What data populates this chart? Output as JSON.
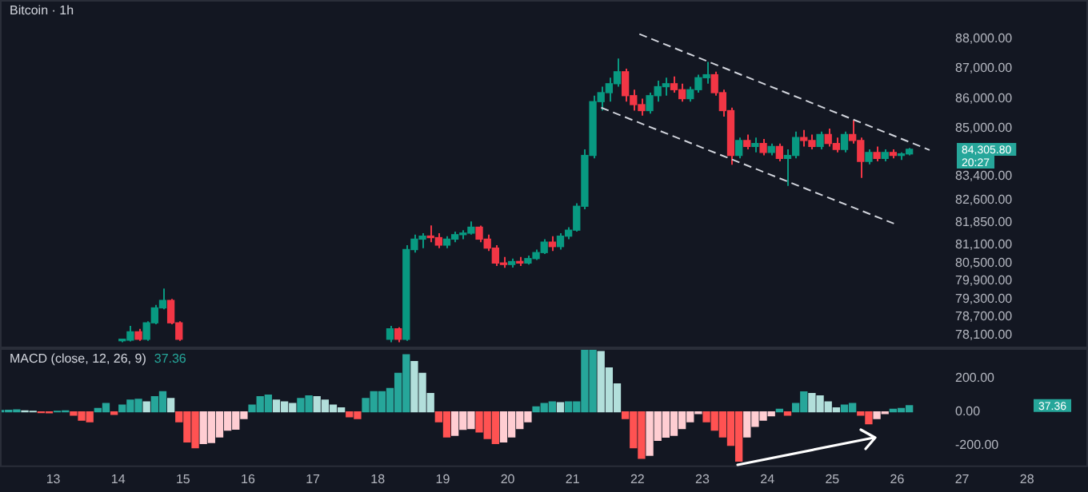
{
  "chart_data": [
    {
      "type": "candlestick",
      "title": "Bitcoin · 1h",
      "tick_labels": "y",
      "grid": false,
      "legend": false,
      "xlim": [
        12.18,
        28.94
      ],
      "ylim": [
        77650,
        89300
      ],
      "yticks": [
        {
          "value": 88000,
          "label": "88,000.00"
        },
        {
          "value": 87000,
          "label": "87,000.00"
        },
        {
          "value": 86000,
          "label": "86,000.00"
        },
        {
          "value": 85000,
          "label": "85,000.00"
        },
        {
          "value": 83400,
          "label": "83,400.00"
        },
        {
          "value": 82600,
          "label": "82,600.00"
        },
        {
          "value": 81850,
          "label": "81,850.00"
        },
        {
          "value": 81100,
          "label": "81,100.00"
        },
        {
          "value": 80500,
          "label": "80,500.00"
        },
        {
          "value": 79900,
          "label": "79,900.00"
        },
        {
          "value": 79300,
          "label": "79,300.00"
        },
        {
          "value": 78700,
          "label": "78,700.00"
        },
        {
          "value": 78100,
          "label": "78,100.00"
        }
      ],
      "x": [
        14.0625,
        14.1875,
        14.3125,
        14.4375,
        14.5625,
        14.6875,
        14.8125,
        14.9375,
        18.1875,
        18.3125,
        18.4375,
        18.5625,
        18.6875,
        18.8125,
        18.9375,
        19.0625,
        19.1875,
        19.3125,
        19.4375,
        19.5625,
        19.6875,
        19.8125,
        19.9375,
        20.0625,
        20.1875,
        20.3125,
        20.4375,
        20.5625,
        20.6875,
        20.8125,
        20.9375,
        21.0625,
        21.1875,
        21.3125,
        21.4375,
        21.5625,
        21.6875,
        21.8125,
        21.9375,
        22.0625,
        22.1875,
        22.3125,
        22.4375,
        22.5625,
        22.6875,
        22.8125,
        22.9375,
        23.0625,
        23.1875,
        23.3125,
        23.4375,
        23.5625,
        23.6875,
        23.8125,
        23.9375,
        24.0625,
        24.1875,
        24.3125,
        24.4375,
        24.5625,
        24.6875,
        24.8125,
        24.9375,
        25.0625,
        25.1875,
        25.3125,
        25.4375,
        25.5625,
        25.6875,
        25.8125,
        25.9375,
        26.0625,
        26.1875
      ],
      "ohlc": [
        [
          77900,
          77950,
          77850,
          77920
        ],
        [
          77920,
          78400,
          77880,
          78200
        ],
        [
          78200,
          78300,
          77900,
          77950
        ],
        [
          77950,
          78550,
          77900,
          78500
        ],
        [
          78500,
          79100,
          78450,
          79000
        ],
        [
          79000,
          79650,
          78950,
          79250
        ],
        [
          79250,
          79300,
          78450,
          78500
        ],
        [
          78500,
          78550,
          77900,
          77950
        ],
        [
          77950,
          78400,
          77850,
          78300
        ],
        [
          78300,
          78350,
          77850,
          77950
        ],
        [
          77950,
          81100,
          77900,
          80950
        ],
        [
          80950,
          81450,
          80850,
          81300
        ],
        [
          81300,
          81500,
          81000,
          81400
        ],
        [
          81400,
          81760,
          81200,
          81350
        ],
        [
          81350,
          81500,
          81000,
          81100
        ],
        [
          81100,
          81400,
          81000,
          81300
        ],
        [
          81300,
          81550,
          81200,
          81450
        ],
        [
          81450,
          81600,
          81300,
          81500
        ],
        [
          81500,
          81890,
          81450,
          81700
        ],
        [
          81700,
          81750,
          81200,
          81300
        ],
        [
          81300,
          81450,
          80900,
          81000
        ],
        [
          81000,
          81100,
          80400,
          80500
        ],
        [
          80500,
          80700,
          80340,
          80450
        ],
        [
          80450,
          80650,
          80350,
          80550
        ],
        [
          80550,
          80700,
          80400,
          80500
        ],
        [
          80500,
          80750,
          80450,
          80650
        ],
        [
          80650,
          80950,
          80600,
          80850
        ],
        [
          80850,
          81300,
          80800,
          81200
        ],
        [
          81200,
          81400,
          80900,
          81050
        ],
        [
          81050,
          81500,
          80950,
          81400
        ],
        [
          81400,
          81700,
          81300,
          81600
        ],
        [
          81600,
          82500,
          81550,
          82400
        ],
        [
          82400,
          84300,
          82300,
          84100
        ],
        [
          84100,
          86100,
          84000,
          85900
        ],
        [
          85900,
          86400,
          85600,
          86200
        ],
        [
          86200,
          86700,
          85900,
          86500
        ],
        [
          86500,
          87340,
          86400,
          86900
        ],
        [
          86900,
          87000,
          85900,
          86100
        ],
        [
          86100,
          86300,
          85600,
          85800
        ],
        [
          85800,
          86000,
          85430,
          85600
        ],
        [
          85600,
          86200,
          85500,
          86100
        ],
        [
          86100,
          86600,
          85900,
          86400
        ],
        [
          86400,
          86700,
          86100,
          86500
        ],
        [
          86500,
          86740,
          86200,
          86300
        ],
        [
          86300,
          86500,
          85900,
          86000
        ],
        [
          86000,
          86400,
          85900,
          86300
        ],
        [
          86300,
          86800,
          86200,
          86700
        ],
        [
          86700,
          87230,
          86500,
          86800
        ],
        [
          86800,
          86900,
          86100,
          86200
        ],
        [
          86200,
          86300,
          85400,
          85600
        ],
        [
          85600,
          85700,
          83790,
          84100
        ],
        [
          84100,
          84700,
          84000,
          84600
        ],
        [
          84600,
          84800,
          84300,
          84400
        ],
        [
          84400,
          84700,
          84200,
          84500
        ],
        [
          84500,
          84650,
          84100,
          84200
        ],
        [
          84200,
          84500,
          84100,
          84400
        ],
        [
          84400,
          84500,
          83900,
          84000
        ],
        [
          84000,
          84300,
          83080,
          84100
        ],
        [
          84100,
          84900,
          84000,
          84700
        ],
        [
          84700,
          84950,
          84400,
          84600
        ],
        [
          84600,
          84800,
          84300,
          84400
        ],
        [
          84400,
          84900,
          84300,
          84800
        ],
        [
          84800,
          85000,
          84400,
          84500
        ],
        [
          84500,
          84700,
          84200,
          84300
        ],
        [
          84300,
          84900,
          84200,
          84800
        ],
        [
          84800,
          85270,
          84500,
          84600
        ],
        [
          84600,
          84700,
          83350,
          83900
        ],
        [
          83900,
          84300,
          83800,
          84200
        ],
        [
          84200,
          84400,
          83900,
          84000
        ],
        [
          84000,
          84300,
          83900,
          84200
        ],
        [
          84200,
          84300,
          84000,
          84100
        ],
        [
          84100,
          84200,
          83950,
          84150
        ],
        [
          84150,
          84350,
          84100,
          84305.8
        ]
      ],
      "series": [
        {
          "type": "line",
          "x": [
            22.03,
            26.5
          ],
          "values": [
            88160,
            84280
          ],
          "color": "#d1d4dc"
        },
        {
          "type": "line",
          "x": [
            21.44,
            25.95
          ],
          "values": [
            85700,
            81820
          ],
          "color": "#d1d4dc"
        }
      ],
      "line_style": "dashed",
      "annotations": [
        "84,305.80",
        "20:27"
      ]
    },
    {
      "type": "bar",
      "title": "MACD (close, 12, 26, 9)",
      "grid": false,
      "legend": false,
      "xlim": [
        12.18,
        28.94
      ],
      "ylim": [
        -330,
        380
      ],
      "xticks": [
        13,
        14,
        15,
        16,
        17,
        18,
        19,
        20,
        21,
        22,
        23,
        24,
        25,
        26,
        27,
        28
      ],
      "yticks": [
        {
          "value": 200,
          "label": "200.00"
        },
        {
          "value": 0,
          "label": "0.00"
        },
        {
          "value": -200,
          "label": "-200.00"
        }
      ],
      "x": [
        12.1875,
        12.3125,
        12.4375,
        12.5625,
        12.6875,
        12.8125,
        12.9375,
        13.0625,
        13.1875,
        13.3125,
        13.4375,
        13.5625,
        13.6875,
        13.8125,
        13.9375,
        14.0625,
        14.1875,
        14.3125,
        14.4375,
        14.5625,
        14.6875,
        14.8125,
        14.9375,
        15.0625,
        15.1875,
        15.3125,
        15.4375,
        15.5625,
        15.6875,
        15.8125,
        15.9375,
        16.0625,
        16.1875,
        16.3125,
        16.4375,
        16.5625,
        16.6875,
        16.8125,
        16.9375,
        17.0625,
        17.1875,
        17.3125,
        17.4375,
        17.5625,
        17.6875,
        17.8125,
        17.9375,
        18.0625,
        18.1875,
        18.3125,
        18.4375,
        18.5625,
        18.6875,
        18.8125,
        18.9375,
        19.0625,
        19.1875,
        19.3125,
        19.4375,
        19.5625,
        19.6875,
        19.8125,
        19.9375,
        20.0625,
        20.1875,
        20.3125,
        20.4375,
        20.5625,
        20.6875,
        20.8125,
        20.9375,
        21.0625,
        21.1875,
        21.3125,
        21.4375,
        21.5625,
        21.6875,
        21.8125,
        21.9375,
        22.0625,
        22.1875,
        22.3125,
        22.4375,
        22.5625,
        22.6875,
        22.8125,
        22.9375,
        23.0625,
        23.1875,
        23.3125,
        23.4375,
        23.5625,
        23.6875,
        23.8125,
        23.9375,
        24.0625,
        24.1875,
        24.3125,
        24.4375,
        24.5625,
        24.6875,
        24.8125,
        24.9375,
        25.0625,
        25.1875,
        25.3125,
        25.4375,
        25.5625,
        25.6875,
        25.8125,
        25.9375,
        26.0625,
        26.1875
      ],
      "values": [
        8,
        10,
        12,
        6,
        4,
        -4,
        -6,
        4,
        6,
        -20,
        -50,
        -60,
        20,
        50,
        -15,
        40,
        70,
        75,
        60,
        90,
        120,
        80,
        -60,
        -180,
        -214,
        -190,
        -183,
        -150,
        -110,
        -103,
        -40,
        40,
        90,
        100,
        70,
        60,
        50,
        80,
        95,
        90,
        70,
        40,
        24,
        -30,
        -40,
        80,
        120,
        120,
        140,
        230,
        341,
        300,
        230,
        110,
        -60,
        -150,
        -140,
        -105,
        -100,
        -120,
        -160,
        -190,
        -180,
        -150,
        -100,
        -60,
        30,
        50,
        60,
        55,
        60,
        60,
        373,
        373,
        360,
        262,
        167,
        -40,
        -214,
        -278,
        -260,
        -170,
        -151,
        -140,
        -100,
        -60,
        -10,
        -60,
        -110,
        -150,
        -200,
        -294,
        -150,
        -87,
        -50,
        -24,
        15,
        -20,
        50,
        119,
        110,
        95,
        60,
        24,
        40,
        50,
        -20,
        -71,
        -40,
        -10,
        15,
        20,
        37.36
      ],
      "colors": [
        "#26a69a",
        "#26a69a",
        "#26a69a",
        "#b2dfdb",
        "#b2dfdb",
        "#ff5252",
        "#ff5252",
        "#26a69a",
        "#26a69a",
        "#ff5252",
        "#ff5252",
        "#ff5252",
        "#26a69a",
        "#26a69a",
        "#ff5252",
        "#26a69a",
        "#26a69a",
        "#26a69a",
        "#b2dfdb",
        "#26a69a",
        "#26a69a",
        "#b2dfdb",
        "#ff5252",
        "#ff5252",
        "#ff5252",
        "#ffcdd2",
        "#ffcdd2",
        "#ffcdd2",
        "#ffcdd2",
        "#ffcdd2",
        "#ffcdd2",
        "#26a69a",
        "#26a69a",
        "#26a69a",
        "#b2dfdb",
        "#b2dfdb",
        "#b2dfdb",
        "#26a69a",
        "#26a69a",
        "#b2dfdb",
        "#b2dfdb",
        "#b2dfdb",
        "#b2dfdb",
        "#ff5252",
        "#ff5252",
        "#26a69a",
        "#26a69a",
        "#26a69a",
        "#26a69a",
        "#26a69a",
        "#26a69a",
        "#b2dfdb",
        "#b2dfdb",
        "#b2dfdb",
        "#ff5252",
        "#ff5252",
        "#ffcdd2",
        "#ffcdd2",
        "#ffcdd2",
        "#ff5252",
        "#ff5252",
        "#ff5252",
        "#ffcdd2",
        "#ffcdd2",
        "#ffcdd2",
        "#ffcdd2",
        "#26a69a",
        "#26a69a",
        "#26a69a",
        "#b2dfdb",
        "#26a69a",
        "#26a69a",
        "#26a69a",
        "#26a69a",
        "#b2dfdb",
        "#b2dfdb",
        "#b2dfdb",
        "#ff5252",
        "#ff5252",
        "#ff5252",
        "#ffcdd2",
        "#ffcdd2",
        "#ffcdd2",
        "#ffcdd2",
        "#ffcdd2",
        "#ffcdd2",
        "#ffcdd2",
        "#ff5252",
        "#ff5252",
        "#ff5252",
        "#ff5252",
        "#ff5252",
        "#ffcdd2",
        "#ffcdd2",
        "#ffcdd2",
        "#ffcdd2",
        "#26a69a",
        "#ff5252",
        "#26a69a",
        "#26a69a",
        "#b2dfdb",
        "#b2dfdb",
        "#b2dfdb",
        "#b2dfdb",
        "#26a69a",
        "#26a69a",
        "#ff5252",
        "#ff5252",
        "#ffcdd2",
        "#ffcdd2",
        "#26a69a",
        "#26a69a",
        "#26a69a"
      ],
      "annotations": [
        "37.36",
        "37.36"
      ]
    }
  ]
}
